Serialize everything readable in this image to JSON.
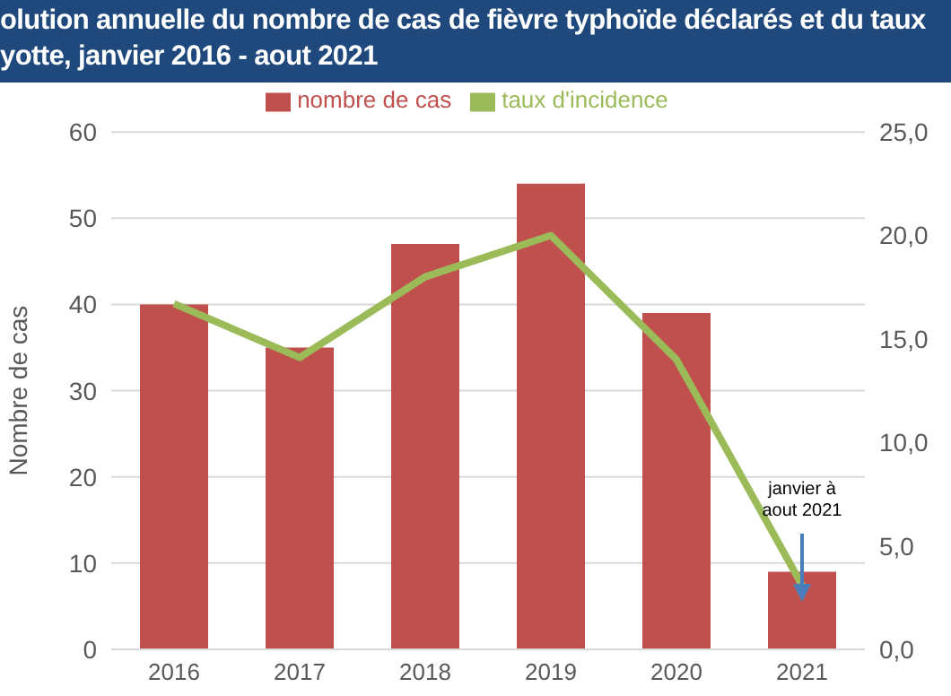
{
  "chart_data": {
    "type": "bar",
    "title": "olution annuelle du nombre de cas de fièvre typhoïde déclarés et du taux\nyotte, janvier 2016 - aout 2021",
    "ylabel": "Nombre de cas",
    "categories": [
      "2016",
      "2017",
      "2018",
      "2019",
      "2020",
      "2021"
    ],
    "series": [
      {
        "name": "nombre de cas",
        "color": "#c0504d",
        "values": [
          40,
          35,
          47,
          54,
          39,
          9
        ]
      },
      {
        "name": "taux d'incidence",
        "type": "line",
        "axis": "y2",
        "color": "#9bbb59",
        "values": [
          16.7,
          14.1,
          18.0,
          20.0,
          14.0,
          3.1
        ]
      }
    ],
    "ylim": [
      0,
      60
    ],
    "yticks": [
      0,
      10,
      20,
      30,
      40,
      50,
      60
    ],
    "y2lim": [
      0,
      25
    ],
    "y2ticks": [
      {
        "value": 0,
        "label": "0,0"
      },
      {
        "value": 5,
        "label": "5,0"
      },
      {
        "value": 10,
        "label": "10,0"
      },
      {
        "value": 15,
        "label": "15,0"
      },
      {
        "value": 20,
        "label": "20,0"
      },
      {
        "value": 25,
        "label": "25,0"
      }
    ],
    "annotations": [
      "janvier à\naout 2021"
    ],
    "grid": "y",
    "legend": "top",
    "marker": "none",
    "line_style": "solid"
  }
}
